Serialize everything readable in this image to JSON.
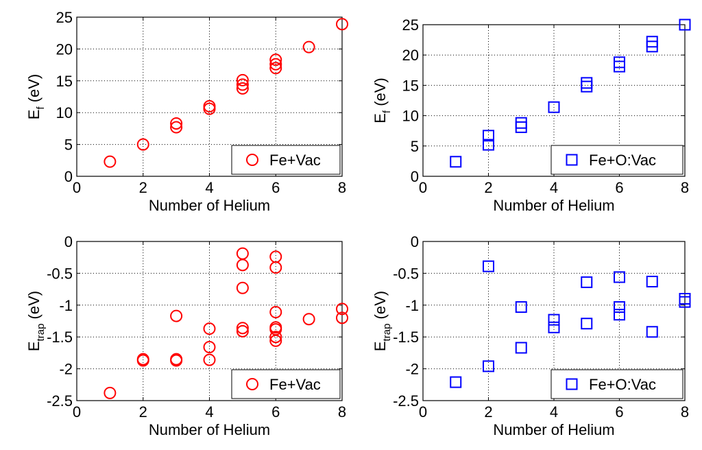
{
  "chart_data": [
    {
      "type": "scatter",
      "marker": "circle",
      "color": "#ff0000",
      "xlabel": "Number of Helium",
      "ylabel_main": "E",
      "ylabel_sub": "f",
      "ylabel_unit": "(eV)",
      "xlim": [
        0,
        8
      ],
      "ylim": [
        0,
        25
      ],
      "xticks": [
        "0",
        "2",
        "4",
        "6",
        "8"
      ],
      "yticks": [
        "0",
        "5",
        "10",
        "15",
        "20",
        "25"
      ],
      "grid": true,
      "legend": "Fe+Vac",
      "legend_position": "bottom-right",
      "points": [
        {
          "x": 1,
          "y": 2.3
        },
        {
          "x": 2,
          "y": 5.0
        },
        {
          "x": 3,
          "y": 7.7
        },
        {
          "x": 3,
          "y": 8.3
        },
        {
          "x": 4,
          "y": 10.6
        },
        {
          "x": 4,
          "y": 11.0
        },
        {
          "x": 5,
          "y": 13.8
        },
        {
          "x": 5,
          "y": 14.4
        },
        {
          "x": 5,
          "y": 15.1
        },
        {
          "x": 6,
          "y": 17.0
        },
        {
          "x": 6,
          "y": 17.6
        },
        {
          "x": 6,
          "y": 18.3
        },
        {
          "x": 7,
          "y": 20.3
        },
        {
          "x": 8,
          "y": 23.9
        }
      ]
    },
    {
      "type": "scatter",
      "marker": "square",
      "color": "#0000ff",
      "xlabel": "Number of Helium",
      "ylabel_main": "E",
      "ylabel_sub": "f",
      "ylabel_unit": "(eV)",
      "xlim": [
        0,
        8
      ],
      "ylim": [
        0,
        25
      ],
      "xticks": [
        "0",
        "2",
        "4",
        "6",
        "8"
      ],
      "yticks": [
        "0",
        "5",
        "10",
        "15",
        "20",
        "25"
      ],
      "grid": true,
      "legend": "Fe+O:Vac",
      "legend_position": "bottom-right",
      "points": [
        {
          "x": 1,
          "y": 2.4
        },
        {
          "x": 2,
          "y": 5.2
        },
        {
          "x": 2,
          "y": 6.7
        },
        {
          "x": 3,
          "y": 8.1
        },
        {
          "x": 3,
          "y": 8.8
        },
        {
          "x": 4,
          "y": 11.4
        },
        {
          "x": 5,
          "y": 14.8
        },
        {
          "x": 5,
          "y": 15.4
        },
        {
          "x": 6,
          "y": 18.1
        },
        {
          "x": 6,
          "y": 18.8
        },
        {
          "x": 7,
          "y": 21.4
        },
        {
          "x": 7,
          "y": 22.2
        },
        {
          "x": 8,
          "y": 25.0
        }
      ]
    },
    {
      "type": "scatter",
      "marker": "circle",
      "color": "#ff0000",
      "xlabel": "Number of Helium",
      "ylabel_main": "E",
      "ylabel_sub": "trap",
      "ylabel_unit": "(eV)",
      "xlim": [
        0,
        8
      ],
      "ylim": [
        -2.5,
        0
      ],
      "xticks": [
        "0",
        "2",
        "4",
        "6",
        "8"
      ],
      "yticks": [
        "-2.5",
        "-2",
        "-1.5",
        "-1",
        "-0.5",
        "0"
      ],
      "grid": true,
      "legend": "Fe+Vac",
      "legend_position": "bottom-right",
      "points": [
        {
          "x": 1,
          "y": -2.38
        },
        {
          "x": 2,
          "y": -1.85
        },
        {
          "x": 2,
          "y": -1.87
        },
        {
          "x": 3,
          "y": -1.17
        },
        {
          "x": 3,
          "y": -1.85
        },
        {
          "x": 3,
          "y": -1.87
        },
        {
          "x": 4,
          "y": -1.37
        },
        {
          "x": 4,
          "y": -1.66
        },
        {
          "x": 4,
          "y": -1.86
        },
        {
          "x": 5,
          "y": -0.19
        },
        {
          "x": 5,
          "y": -0.37
        },
        {
          "x": 5,
          "y": -0.73
        },
        {
          "x": 5,
          "y": -1.36
        },
        {
          "x": 5,
          "y": -1.41
        },
        {
          "x": 6,
          "y": -0.24
        },
        {
          "x": 6,
          "y": -0.41
        },
        {
          "x": 6,
          "y": -1.11
        },
        {
          "x": 6,
          "y": -1.35
        },
        {
          "x": 6,
          "y": -1.38
        },
        {
          "x": 6,
          "y": -1.5
        },
        {
          "x": 6,
          "y": -1.56
        },
        {
          "x": 7,
          "y": -1.22
        },
        {
          "x": 8,
          "y": -1.06
        },
        {
          "x": 8,
          "y": -1.2
        }
      ]
    },
    {
      "type": "scatter",
      "marker": "square",
      "color": "#0000ff",
      "xlabel": "Number of Helium",
      "ylabel_main": "E",
      "ylabel_sub": "trap",
      "ylabel_unit": "(eV)",
      "xlim": [
        0,
        8
      ],
      "ylim": [
        -2.5,
        0
      ],
      "xticks": [
        "0",
        "2",
        "4",
        "6",
        "8"
      ],
      "yticks": [
        "-2.5",
        "-2",
        "-1.5",
        "-1",
        "-0.5",
        "0"
      ],
      "grid": true,
      "legend": "Fe+O:Vac",
      "legend_position": "bottom-right",
      "points": [
        {
          "x": 1,
          "y": -2.21
        },
        {
          "x": 2,
          "y": -0.39
        },
        {
          "x": 2,
          "y": -1.96
        },
        {
          "x": 3,
          "y": -1.03
        },
        {
          "x": 3,
          "y": -1.67
        },
        {
          "x": 4,
          "y": -1.23
        },
        {
          "x": 4,
          "y": -1.35
        },
        {
          "x": 5,
          "y": -0.64
        },
        {
          "x": 5,
          "y": -1.29
        },
        {
          "x": 6,
          "y": -0.56
        },
        {
          "x": 6,
          "y": -1.03
        },
        {
          "x": 6,
          "y": -1.15
        },
        {
          "x": 7,
          "y": -0.63
        },
        {
          "x": 7,
          "y": -1.42
        },
        {
          "x": 8,
          "y": -0.9
        },
        {
          "x": 8,
          "y": -0.95
        }
      ]
    }
  ]
}
